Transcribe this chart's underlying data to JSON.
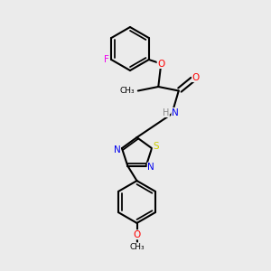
{
  "bg_color": "#ebebeb",
  "line_color": "#000000",
  "bond_lw": 1.5,
  "atom_colors": {
    "F": "#ee00ee",
    "O": "#ff0000",
    "N": "#0000ee",
    "S": "#cccc00",
    "C": "#000000",
    "H": "#888888"
  },
  "figsize": [
    3.0,
    3.0
  ],
  "dpi": 100
}
